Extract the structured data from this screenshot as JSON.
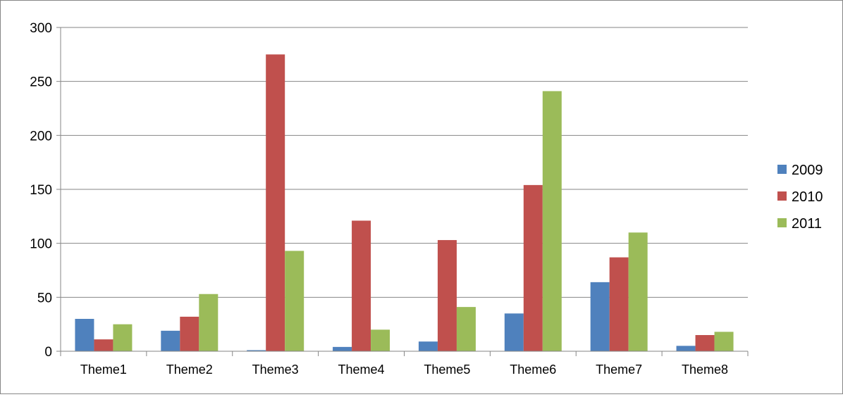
{
  "chart_data": {
    "type": "bar",
    "categories": [
      "Theme1",
      "Theme2",
      "Theme3",
      "Theme4",
      "Theme5",
      "Theme6",
      "Theme7",
      "Theme8"
    ],
    "series": [
      {
        "name": "2009",
        "color": "#4F81BD",
        "values": [
          30,
          19,
          1,
          4,
          9,
          35,
          64,
          5
        ]
      },
      {
        "name": "2010",
        "color": "#C0504D",
        "values": [
          11,
          32,
          275,
          121,
          103,
          154,
          87,
          15
        ]
      },
      {
        "name": "2011",
        "color": "#9BBB59",
        "values": [
          25,
          53,
          93,
          20,
          41,
          241,
          110,
          18
        ]
      }
    ],
    "yticks": [
      "0",
      "50",
      "100",
      "150",
      "200",
      "250",
      "300"
    ],
    "ylim": [
      0,
      300
    ],
    "grid": true,
    "legend_position": "right"
  }
}
